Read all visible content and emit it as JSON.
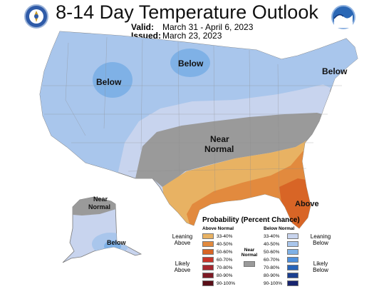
{
  "header": {
    "title": "8-14 Day Temperature Outlook",
    "valid_label": "Valid:",
    "valid_value": "March 31 - April 6, 2023",
    "issued_label": "Issued:",
    "issued_value": "March 23, 2023"
  },
  "logos": {
    "left": {
      "name": "doc-seal-icon",
      "text": "DOC"
    },
    "right": {
      "name": "noaa-logo-icon",
      "text": "NOAA"
    }
  },
  "map": {
    "region_labels": {
      "below_west": "Below",
      "below_north": "Below",
      "below_northeast": "Below",
      "near_normal_line1": "Near",
      "near_normal_line2": "Normal",
      "alaska_near_line1": "Near",
      "alaska_near_line2": "Normal",
      "alaska_below": "Below",
      "above_southeast": "Above"
    }
  },
  "legend": {
    "title": "Probability (Percent Chance)",
    "above_header": "Above Normal",
    "below_header": "Below Normal",
    "normal_label_line1": "Near",
    "normal_label_line2": "Normal",
    "leaning_above": "Leaning\nAbove",
    "likely_above": "Likely\nAbove",
    "leaning_below": "Leaning\nBelow",
    "likely_below": "Likely\nBelow",
    "above": [
      {
        "range": "33-40%",
        "color": "#e8b263"
      },
      {
        "range": "40-50%",
        "color": "#e28a3e"
      },
      {
        "range": "50-60%",
        "color": "#d86526"
      },
      {
        "range": "60-70%",
        "color": "#c8342a"
      },
      {
        "range": "70-80%",
        "color": "#a62830"
      },
      {
        "range": "80-90%",
        "color": "#7e1a24"
      },
      {
        "range": "90-100%",
        "color": "#5a0e18"
      }
    ],
    "below": [
      {
        "range": "33-40%",
        "color": "#c8d4ee"
      },
      {
        "range": "40-50%",
        "color": "#a9c6ec"
      },
      {
        "range": "50-60%",
        "color": "#7fb1e6"
      },
      {
        "range": "60-70%",
        "color": "#4d8fdc"
      },
      {
        "range": "70-80%",
        "color": "#2763b8"
      },
      {
        "range": "80-90%",
        "color": "#1b3f90"
      },
      {
        "range": "90-100%",
        "color": "#17246e"
      }
    ],
    "normal_color": "#9a9a9a"
  }
}
